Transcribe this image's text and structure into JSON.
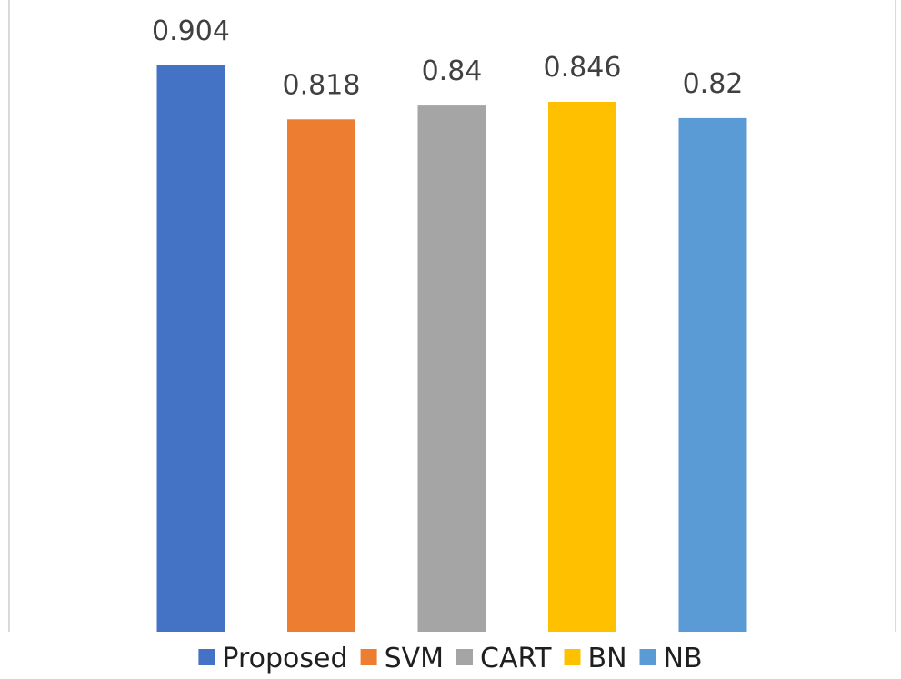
{
  "chart_data": {
    "type": "bar",
    "categories": [
      "Proposed",
      "SVM",
      "CART",
      "BN",
      "NB"
    ],
    "values": [
      0.904,
      0.818,
      0.84,
      0.846,
      0.82
    ],
    "data_labels": [
      "0.904",
      "0.818",
      "0.84",
      "0.846",
      "0.82"
    ],
    "colors": [
      "#4472C4",
      "#ED7D31",
      "#A5A5A5",
      "#FFC000",
      "#5B9BD5"
    ],
    "title": "",
    "xlabel": "",
    "ylabel": "",
    "grid": false,
    "legend_position": "bottom"
  },
  "legend": {
    "items": [
      {
        "label": "Proposed",
        "color": "#4472C4"
      },
      {
        "label": "SVM",
        "color": "#ED7D31"
      },
      {
        "label": "CART",
        "color": "#A5A5A5"
      },
      {
        "label": "BN",
        "color": "#FFC000"
      },
      {
        "label": "NB",
        "color": "#5B9BD5"
      }
    ]
  }
}
